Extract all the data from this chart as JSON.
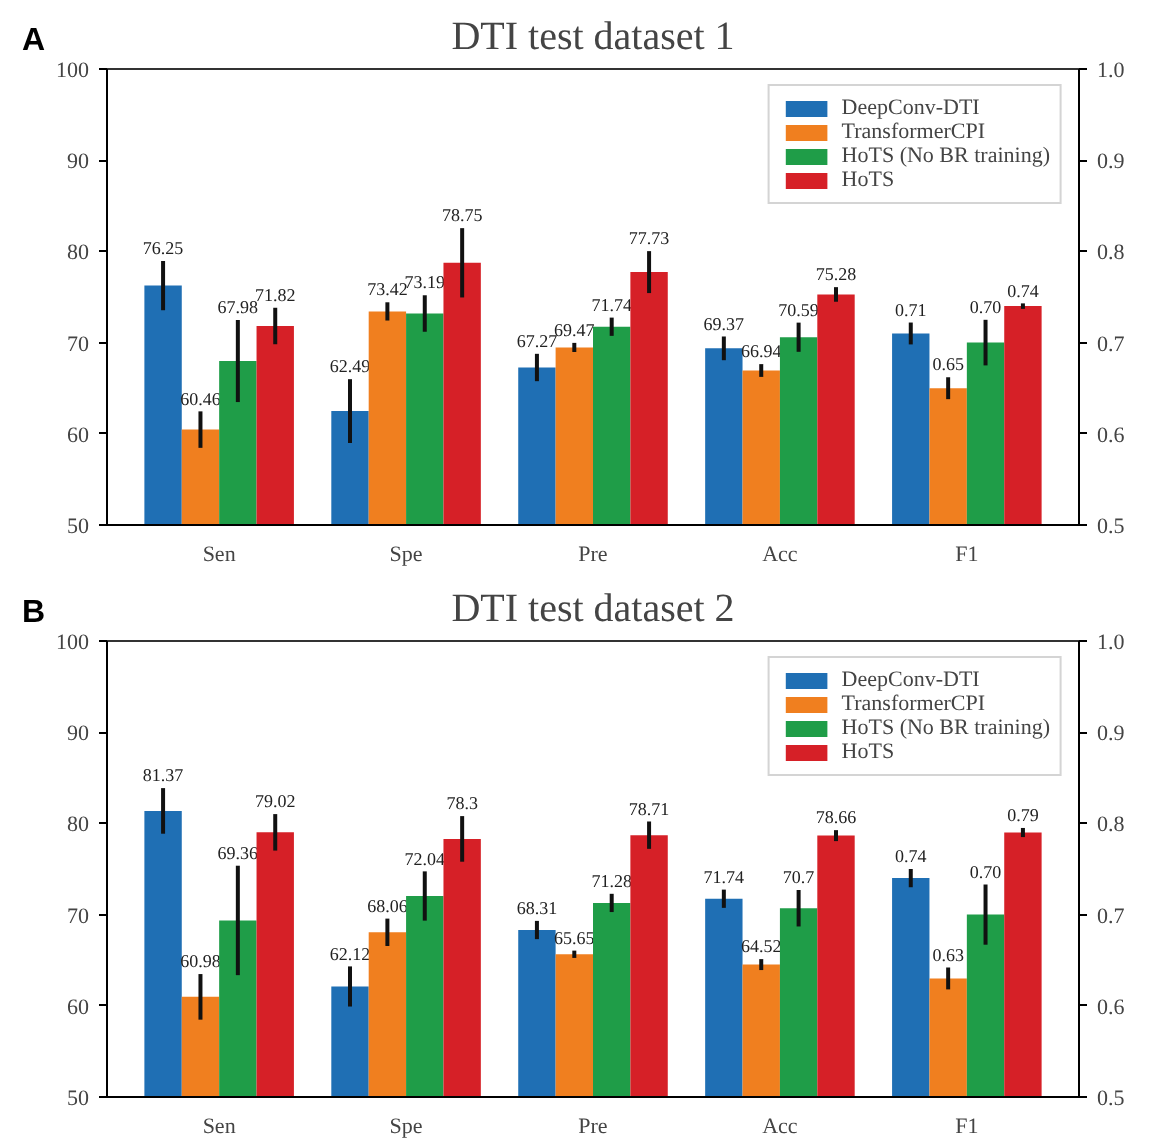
{
  "chart_data": [
    {
      "type": "bar",
      "title": "DTI test dataset 1",
      "annotations": [
        "A"
      ],
      "categories": [
        "Sen",
        "Spe",
        "Pre",
        "Acc",
        "F1"
      ],
      "ylim": [
        50,
        100
      ],
      "yticks": [
        50,
        60,
        70,
        80,
        90,
        100
      ],
      "y2lim": [
        0.5,
        1.0
      ],
      "y2ticks": [
        0.5,
        0.6,
        0.7,
        0.8,
        0.9,
        {
          "value": 1,
          "label": "1.0"
        }
      ],
      "grid": false,
      "legend": "top right",
      "series": [
        {
          "name": "DeepConv-DTI",
          "color": "#1f6fb4",
          "values": [
            76.25,
            62.49,
            67.27,
            69.37,
            null
          ],
          "errors": [
            2.7,
            3.5,
            1.5,
            1.3,
            null
          ],
          "value_labels": [
            "76.25",
            "62.49",
            "67.27",
            "69.37",
            null
          ]
        },
        {
          "name": "TransformerCPI",
          "color": "#f07f1f",
          "values": [
            60.46,
            73.42,
            69.47,
            66.94,
            null
          ],
          "errors": [
            2,
            1,
            0.5,
            0.7,
            null
          ],
          "value_labels": [
            "60.46",
            "73.42",
            "69.47",
            "66.94",
            null
          ]
        },
        {
          "name": "HoTS (No BR training)",
          "color": "#1f9d48",
          "values": [
            67.98,
            73.19,
            71.74,
            70.59,
            null
          ],
          "errors": [
            4.5,
            2,
            1,
            1.6,
            null
          ],
          "value_labels": [
            "67.98",
            "73.19",
            "71.74",
            "70.59",
            null
          ]
        },
        {
          "name": "HoTS",
          "color": "#d62027",
          "values": [
            71.82,
            78.75,
            77.73,
            75.28,
            null
          ],
          "errors": [
            2,
            3.8,
            2.3,
            0.8,
            null
          ],
          "value_labels": [
            "71.82",
            "78.75",
            "77.73",
            "75.28",
            null
          ]
        },
        {
          "axis": "y2",
          "color": "#1f6fb4",
          "values": [
            null,
            null,
            null,
            null,
            0.71
          ],
          "errors": [
            null,
            null,
            null,
            null,
            0.012
          ],
          "value_labels": [
            null,
            null,
            null,
            null,
            "0.71"
          ]
        },
        {
          "axis": "y2",
          "color": "#f07f1f",
          "values": [
            null,
            null,
            null,
            null,
            0.65
          ],
          "errors": [
            null,
            null,
            null,
            null,
            0.012
          ],
          "value_labels": [
            null,
            null,
            null,
            null,
            "0.65"
          ]
        },
        {
          "axis": "y2",
          "color": "#1f9d48",
          "values": [
            null,
            null,
            null,
            null,
            0.7
          ],
          "errors": [
            null,
            null,
            null,
            null,
            0.025
          ],
          "value_labels": [
            null,
            null,
            null,
            null,
            "0.70"
          ]
        },
        {
          "axis": "y2",
          "color": "#d62027",
          "values": [
            null,
            null,
            null,
            null,
            0.74
          ],
          "errors": [
            null,
            null,
            null,
            null,
            0.003
          ],
          "value_labels": [
            null,
            null,
            null,
            null,
            "0.74"
          ]
        }
      ]
    },
    {
      "type": "bar",
      "title": "DTI test dataset 2",
      "annotations": [
        "B"
      ],
      "categories": [
        "Sen",
        "Spe",
        "Pre",
        "Acc",
        "F1"
      ],
      "ylim": [
        50,
        100
      ],
      "yticks": [
        50,
        60,
        70,
        80,
        90,
        100
      ],
      "y2lim": [
        0.5,
        1.0
      ],
      "y2ticks": [
        0.5,
        0.6,
        0.7,
        0.8,
        0.9,
        {
          "value": 1,
          "label": "1.0"
        }
      ],
      "grid": false,
      "legend": "top right",
      "series": [
        {
          "name": "DeepConv-DTI",
          "color": "#1f6fb4",
          "values": [
            81.37,
            62.12,
            68.31,
            71.74,
            null
          ],
          "errors": [
            2.5,
            2.2,
            1,
            1,
            null
          ],
          "value_labels": [
            "81.37",
            "62.12",
            "68.31",
            "71.74",
            null
          ]
        },
        {
          "name": "TransformerCPI",
          "color": "#f07f1f",
          "values": [
            60.98,
            68.06,
            65.65,
            64.52,
            null
          ],
          "errors": [
            2.5,
            1.5,
            0.4,
            0.6,
            null
          ],
          "value_labels": [
            "60.98",
            "68.06",
            "65.65",
            "64.52",
            null
          ]
        },
        {
          "name": "HoTS (No BR training)",
          "color": "#1f9d48",
          "values": [
            69.36,
            72.04,
            71.28,
            70.7,
            null
          ],
          "errors": [
            6,
            2.7,
            1,
            2,
            null
          ],
          "value_labels": [
            "69.36",
            "72.04",
            "71.28",
            "70.7",
            null
          ]
        },
        {
          "name": "HoTS",
          "color": "#d62027",
          "values": [
            79.02,
            78.3,
            78.71,
            78.66,
            null
          ],
          "errors": [
            2,
            2.5,
            1.5,
            0.6,
            null
          ],
          "value_labels": [
            "79.02",
            "78.3",
            "78.71",
            "78.66",
            null
          ]
        },
        {
          "axis": "y2",
          "color": "#1f6fb4",
          "values": [
            null,
            null,
            null,
            null,
            0.74
          ],
          "errors": [
            null,
            null,
            null,
            null,
            0.01
          ],
          "value_labels": [
            null,
            null,
            null,
            null,
            "0.74"
          ]
        },
        {
          "axis": "y2",
          "color": "#f07f1f",
          "values": [
            null,
            null,
            null,
            null,
            0.63
          ],
          "errors": [
            null,
            null,
            null,
            null,
            0.012
          ],
          "value_labels": [
            null,
            null,
            null,
            null,
            "0.63"
          ]
        },
        {
          "axis": "y2",
          "color": "#1f9d48",
          "values": [
            null,
            null,
            null,
            null,
            0.7
          ],
          "errors": [
            null,
            null,
            null,
            null,
            0.033
          ],
          "value_labels": [
            null,
            null,
            null,
            null,
            "0.70"
          ]
        },
        {
          "axis": "y2",
          "color": "#d62027",
          "values": [
            null,
            null,
            null,
            null,
            0.79
          ],
          "errors": [
            null,
            null,
            null,
            null,
            0.005
          ],
          "value_labels": [
            null,
            null,
            null,
            null,
            "0.79"
          ]
        }
      ]
    }
  ]
}
